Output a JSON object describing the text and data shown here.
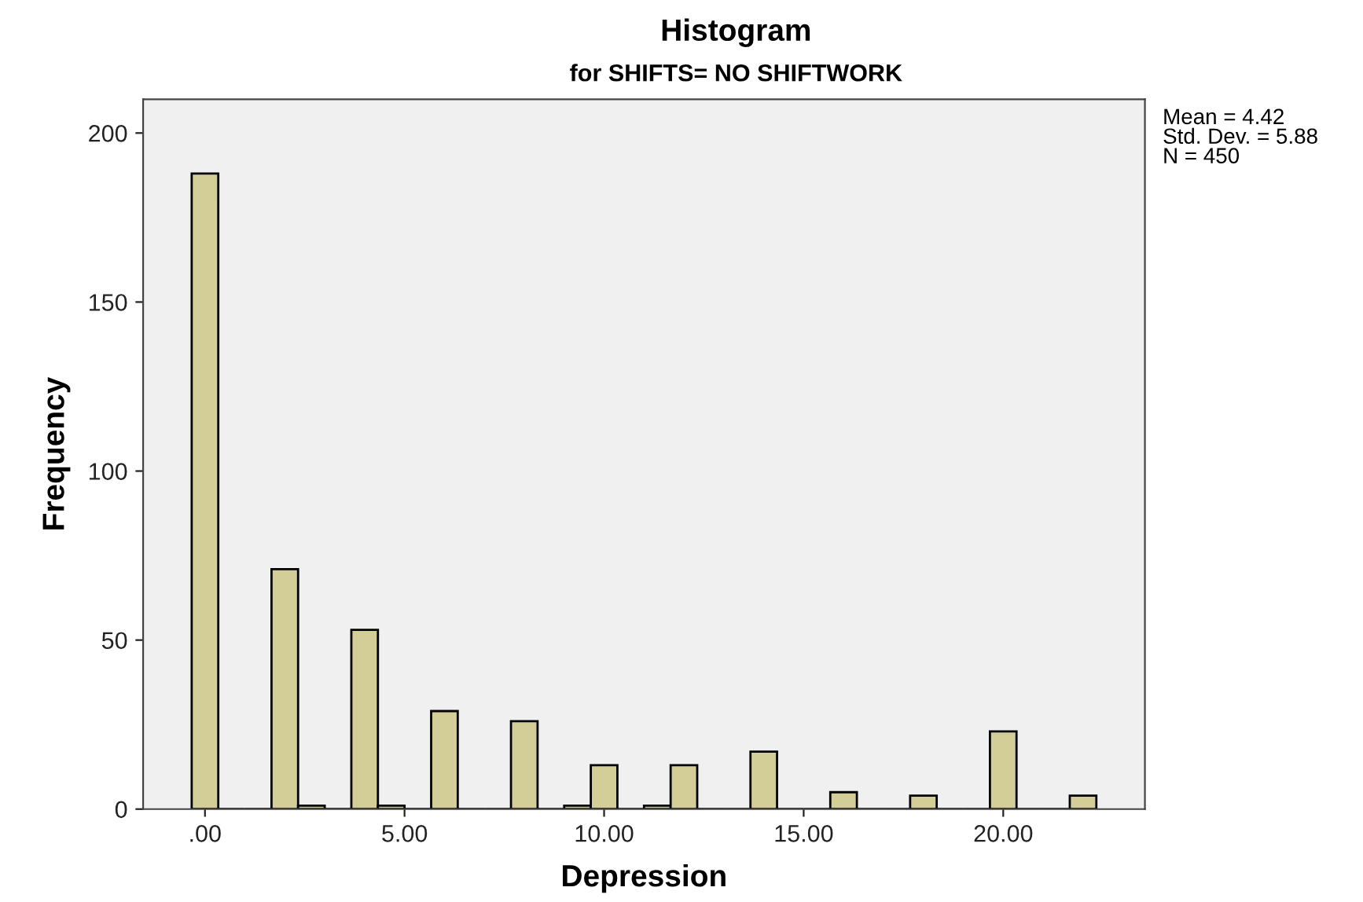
{
  "chart_data": {
    "type": "histogram",
    "title": "Histogram",
    "subtitle": "for SHIFTS= NO SHIFTWORK",
    "xlabel": "Depression",
    "ylabel": "Frequency",
    "bins": [
      -0.333,
      0.333,
      1,
      1.667,
      2.333,
      3,
      3.667,
      4.333,
      5,
      5.667,
      6.333,
      7,
      7.667,
      8.333,
      9,
      9.667,
      10.333,
      11,
      11.667,
      12.333,
      13,
      13.667,
      14.333,
      15,
      15.667,
      16.333,
      17,
      17.667,
      18.333,
      19,
      19.667,
      20.333,
      21,
      21.667,
      22.333
    ],
    "values": [
      188,
      0,
      0,
      71,
      1,
      0,
      53,
      1,
      0,
      29,
      0,
      0,
      26,
      0,
      1,
      13,
      0,
      1,
      13,
      0,
      0,
      17,
      0,
      0,
      5,
      0,
      0,
      4,
      0,
      0,
      23,
      0,
      0,
      4
    ],
    "color": "#d3ce97",
    "xlim": [
      -1.55,
      23.55
    ],
    "xticks": [
      {
        "value": 0,
        "label": ".00"
      },
      {
        "value": 5,
        "label": "5.00"
      },
      {
        "value": 10,
        "label": "10.00"
      },
      {
        "value": 15,
        "label": "15.00"
      },
      {
        "value": 20,
        "label": "20.00"
      }
    ],
    "ylim": [
      0,
      210
    ],
    "yticks": [
      0,
      50,
      100,
      150,
      200
    ],
    "grid": false,
    "legend": false,
    "annotations": [
      "Mean = 4.42\nStd. Dev. = 5.88\nN = 450"
    ]
  }
}
